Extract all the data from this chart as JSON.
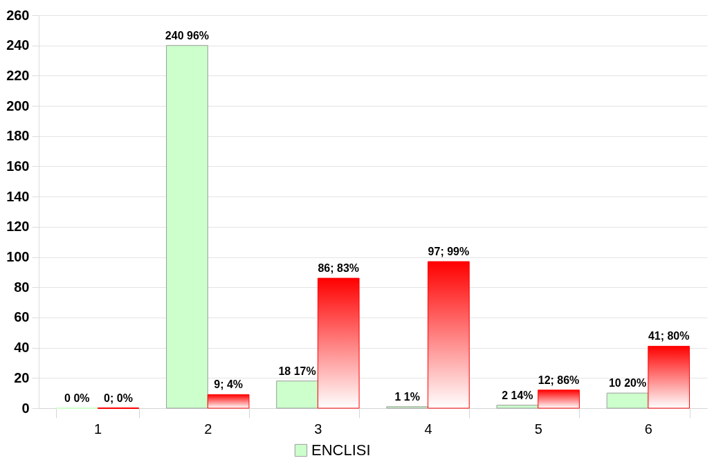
{
  "chart_data": {
    "type": "bar",
    "categories": [
      "1",
      "2",
      "3",
      "4",
      "5",
      "6"
    ],
    "series": [
      {
        "name": "ENCLISI",
        "color": "#ccffcc",
        "values": [
          0,
          240,
          18,
          1,
          2,
          10
        ],
        "value_labels": [
          "0 0%",
          "240 96%",
          "18 17%",
          "1 1%",
          "2 14%",
          "10 20%"
        ]
      },
      {
        "color": "#ff0000",
        "values": [
          0,
          9,
          86,
          97,
          12,
          41
        ],
        "value_labels": [
          "0; 0%",
          "9; 4%",
          "86; 83%",
          "97; 99%",
          "12; 86%",
          "41; 80%"
        ]
      }
    ],
    "ylim": [
      0,
      260
    ],
    "yticks": [
      0,
      20,
      40,
      60,
      80,
      100,
      120,
      140,
      160,
      180,
      200,
      220,
      240,
      260
    ],
    "grid": "y",
    "legend": "bottom"
  }
}
